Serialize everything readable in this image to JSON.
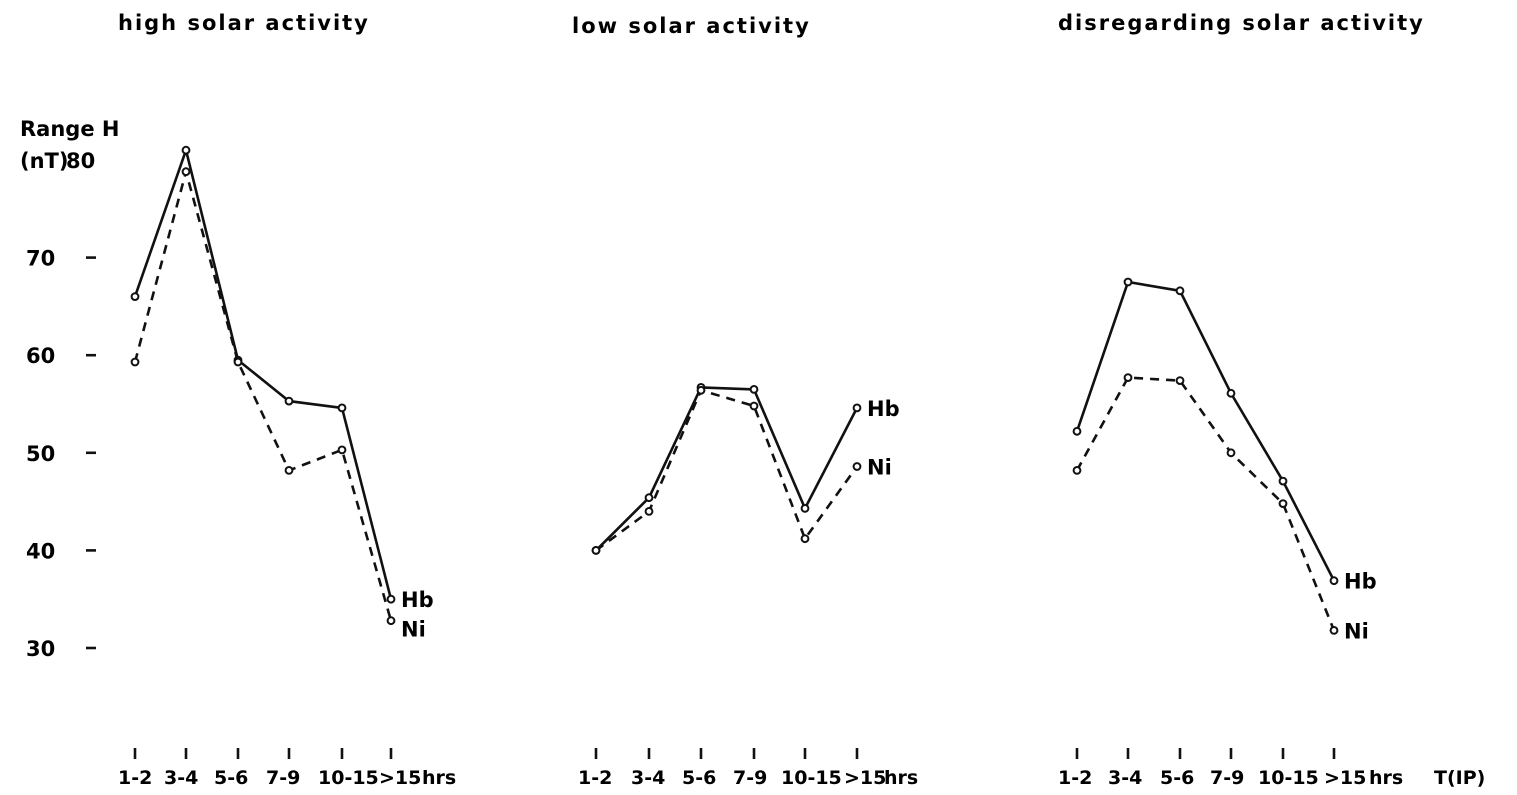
{
  "chart_data": [
    {
      "type": "line",
      "title": "high solar activity",
      "ylabel": "Range H\n(nT)",
      "yticks": [
        80,
        70,
        60,
        50,
        40,
        30
      ],
      "ylim": [
        30,
        80
      ],
      "categories": [
        "1-2",
        "3-4",
        "5-6",
        "7-9",
        "10-15",
        ">15"
      ],
      "xunit": "hrs",
      "series": [
        {
          "name": "Hb",
          "style": "solid",
          "values": [
            66,
            81,
            59.5,
            55.3,
            54.6,
            35
          ]
        },
        {
          "name": "Ni",
          "style": "dashed",
          "values": [
            59.3,
            78.8,
            59.3,
            48.2,
            50.3,
            32.8
          ]
        }
      ]
    },
    {
      "type": "line",
      "title": "low solar activity",
      "categories": [
        "1-2",
        "3-4",
        "5-6",
        "7-9",
        "10-15",
        ">15"
      ],
      "xunit": "hrs",
      "series": [
        {
          "name": "Hb",
          "style": "solid",
          "values": [
            40,
            45.4,
            56.7,
            56.5,
            44.3,
            54.6
          ]
        },
        {
          "name": "Ni",
          "style": "dashed",
          "values": [
            40,
            44,
            56.4,
            54.8,
            41.2,
            48.6
          ]
        }
      ]
    },
    {
      "type": "line",
      "title": "disregarding solar activity",
      "categories": [
        "1-2",
        "3-4",
        "5-6",
        "7-9",
        "10-15",
        ">15"
      ],
      "xunit": "hrs",
      "xlabel": "T(IP)",
      "series": [
        {
          "name": "Hb",
          "style": "solid",
          "values": [
            52.2,
            67.5,
            66.6,
            56.1,
            47.1,
            36.9
          ]
        },
        {
          "name": "Ni",
          "style": "dashed",
          "values": [
            48.2,
            57.7,
            57.4,
            50,
            44.8,
            31.8
          ]
        }
      ]
    }
  ]
}
